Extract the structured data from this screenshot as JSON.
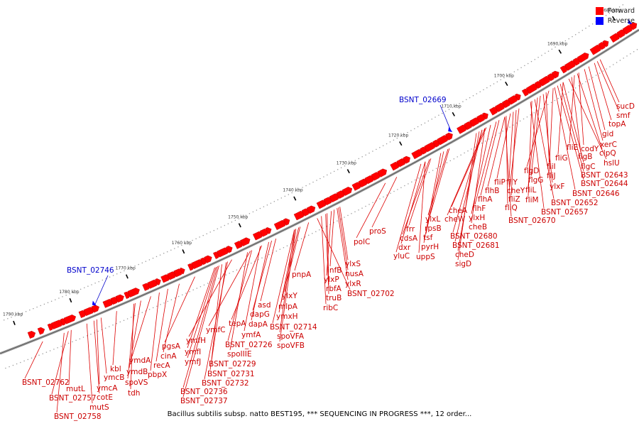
{
  "legend": {
    "forward": {
      "label": "Forward",
      "color": "#ff0000"
    },
    "reverse": {
      "label": "Reverse",
      "color": "#0000ff"
    }
  },
  "caption": "Bacillus subtilis subsp. natto BEST195, *** SEQUENCING IN PROGRESS ***, 12 order...",
  "kbp_ticks": [
    "1680 kbp",
    "1690 kbp",
    "1700 kbp",
    "1710 kbp",
    "1720 kbp",
    "1730 kbp",
    "1740 kbp",
    "1750 kbp",
    "1760 kbp",
    "1770 kbp",
    "1780 kbp",
    "1790 kbp"
  ],
  "reverse_genes": [
    "BSNT_02669",
    "BSNT_02746"
  ],
  "forward_genes": [
    "sucD",
    "smf",
    "topA",
    "gid",
    "xerC",
    "codY",
    "clpQ",
    "fliE",
    "flgB",
    "hslU",
    "fliG",
    "flgC",
    "BSNT_02643",
    "BSNT_02644",
    "fliI",
    "BSNT_02646",
    "flgD",
    "fliJ",
    "ylxF",
    "flgG",
    "fliL",
    "BSNT_02652",
    "fliM",
    "BSNT_02657",
    "fliP",
    "fliY",
    "cheY",
    "fliZ",
    "flhB",
    "fliQ",
    "flhA",
    "BSNT_02670",
    "flhF",
    "ylxH",
    "cheA",
    "cheW",
    "cheB",
    "BSNT_02680",
    "BSNT_02681",
    "cheD",
    "sigD",
    "ylxL",
    "rpsB",
    "tsf",
    "pyrH",
    "frr",
    "cdsA",
    "dxr",
    "uppS",
    "yluC",
    "proS",
    "polC",
    "ylxS",
    "nusA",
    "ylxR",
    "infB",
    "ylxP",
    "rbfA",
    "truB",
    "ribC",
    "BSNT_02702",
    "pnpA",
    "ylxY",
    "mlpA",
    "ymxH",
    "BSNT_02714",
    "spoVFA",
    "spoVFB",
    "asd",
    "dapG",
    "dapA",
    "tepA",
    "ymfA",
    "BSNT_02726",
    "ymfC",
    "spoIIIE",
    "ymfH",
    "BSNT_02729",
    "BSNT_02731",
    "BSNT_02732",
    "ymfI",
    "ymfJ",
    "BSNT_02736",
    "BSNT_02737",
    "pgsA",
    "cinA",
    "recA",
    "pbpX",
    "ymdA",
    "ymdB",
    "spoVS",
    "tdh",
    "kbl",
    "ymcB",
    "ymcA",
    "cotE",
    "mutS",
    "mutL",
    "BSNT_02757",
    "BSNT_02758",
    "BSNT_02762"
  ]
}
